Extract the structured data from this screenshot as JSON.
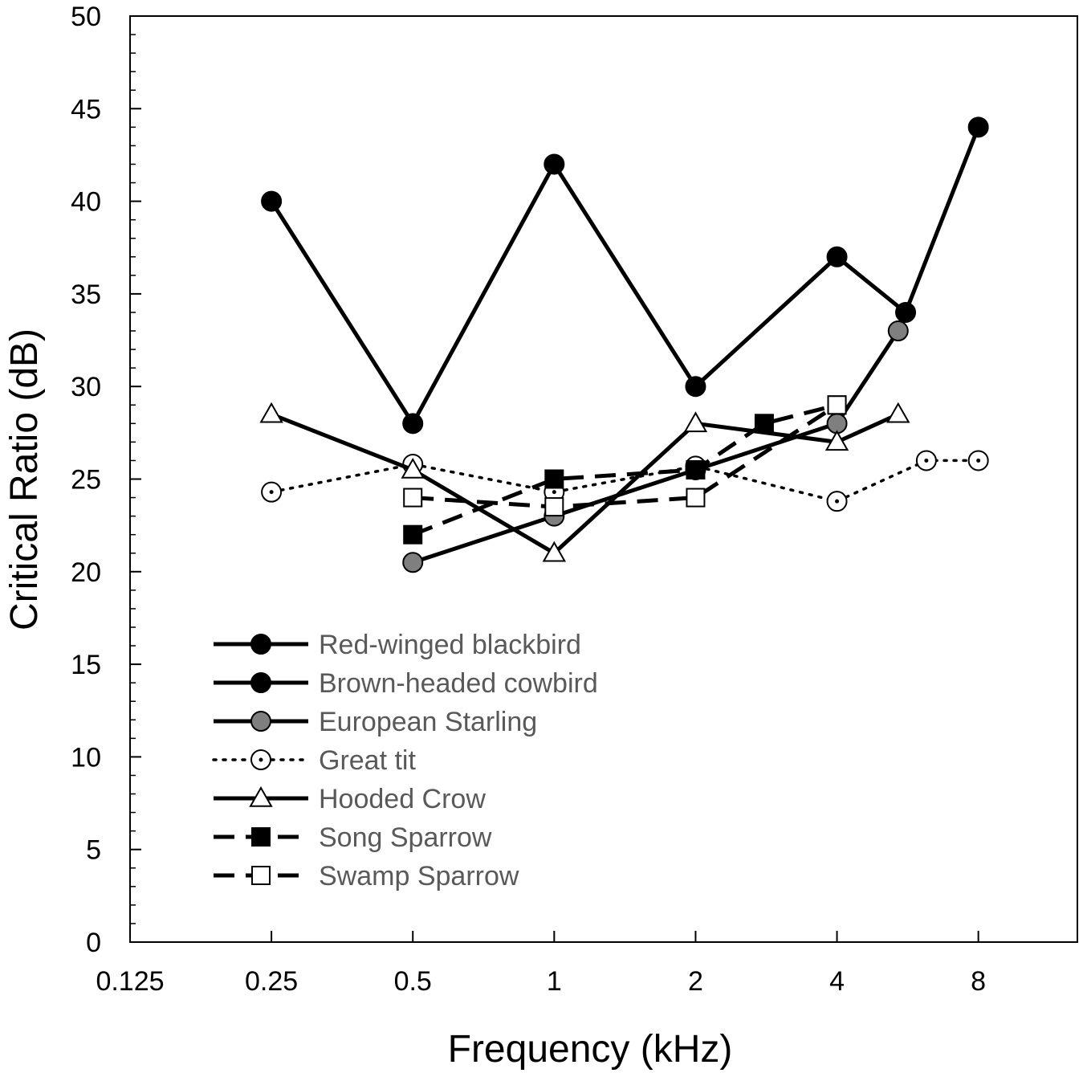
{
  "chart_data": {
    "type": "line",
    "title": "",
    "xlabel": "Frequency (kHz)",
    "ylabel": "Critical Ratio (dB)",
    "x_scale": "log2",
    "xlim": [
      0.125,
      13.0
    ],
    "ylim": [
      0,
      50
    ],
    "x_ticks": [
      0.125,
      0.25,
      0.5,
      1,
      2,
      4,
      8
    ],
    "x_tick_labels": [
      "0.125",
      "0.25",
      "0.5",
      "1",
      "2",
      "4",
      "8"
    ],
    "y_ticks": [
      0,
      5,
      10,
      15,
      20,
      25,
      30,
      35,
      40,
      45,
      50
    ],
    "y_tick_labels": [
      "0",
      "5",
      "10",
      "15",
      "20",
      "25",
      "30",
      "35",
      "40",
      "45",
      "50"
    ],
    "legend_position": "bottom-left",
    "series": [
      {
        "name": "Red-winged blackbird",
        "marker": "filled-circle",
        "marker_color": "#000000",
        "line_style": "solid",
        "points": [
          [
            0.25,
            40
          ],
          [
            0.5,
            28
          ],
          [
            1,
            42
          ],
          [
            2,
            30
          ],
          [
            4,
            37
          ],
          [
            5.6,
            34
          ],
          [
            8,
            44
          ]
        ]
      },
      {
        "name": "Brown-headed cowbird",
        "marker": "filled-circle",
        "marker_color": "#000000",
        "line_style": "solid",
        "points": []
      },
      {
        "name": "European Starling",
        "marker": "filled-circle",
        "marker_color": "#7f7f7f",
        "line_style": "solid",
        "points": [
          [
            0.5,
            20.5
          ],
          [
            1,
            23
          ],
          [
            2,
            25.5
          ],
          [
            4,
            28
          ],
          [
            5.4,
            33
          ]
        ]
      },
      {
        "name": "Great tit",
        "marker": "dotted-circle",
        "marker_color": "#ffffff",
        "line_style": "dotted",
        "points": [
          [
            0.25,
            24.3
          ],
          [
            0.5,
            25.8
          ],
          [
            1,
            24.3
          ],
          [
            2,
            25.7
          ],
          [
            4,
            23.8
          ],
          [
            6.2,
            26
          ],
          [
            8,
            26
          ]
        ]
      },
      {
        "name": "Hooded Crow",
        "marker": "open-triangle",
        "marker_color": "#ffffff",
        "line_style": "solid",
        "points": [
          [
            0.25,
            28.5
          ],
          [
            0.5,
            25.5
          ],
          [
            1,
            21
          ],
          [
            2,
            28
          ],
          [
            4,
            27
          ],
          [
            5.4,
            28.5
          ]
        ]
      },
      {
        "name": "Song Sparrow",
        "marker": "filled-square",
        "marker_color": "#000000",
        "line_style": "dashed",
        "points": [
          [
            0.5,
            22
          ],
          [
            1,
            25
          ],
          [
            2,
            25.5
          ],
          [
            2.8,
            28
          ],
          [
            4,
            29
          ]
        ]
      },
      {
        "name": "Swamp Sparrow",
        "marker": "open-square",
        "marker_color": "#ffffff",
        "line_style": "dashed",
        "points": [
          [
            0.5,
            24
          ],
          [
            1,
            23.5
          ],
          [
            2,
            24
          ],
          [
            4,
            29
          ]
        ]
      }
    ]
  }
}
